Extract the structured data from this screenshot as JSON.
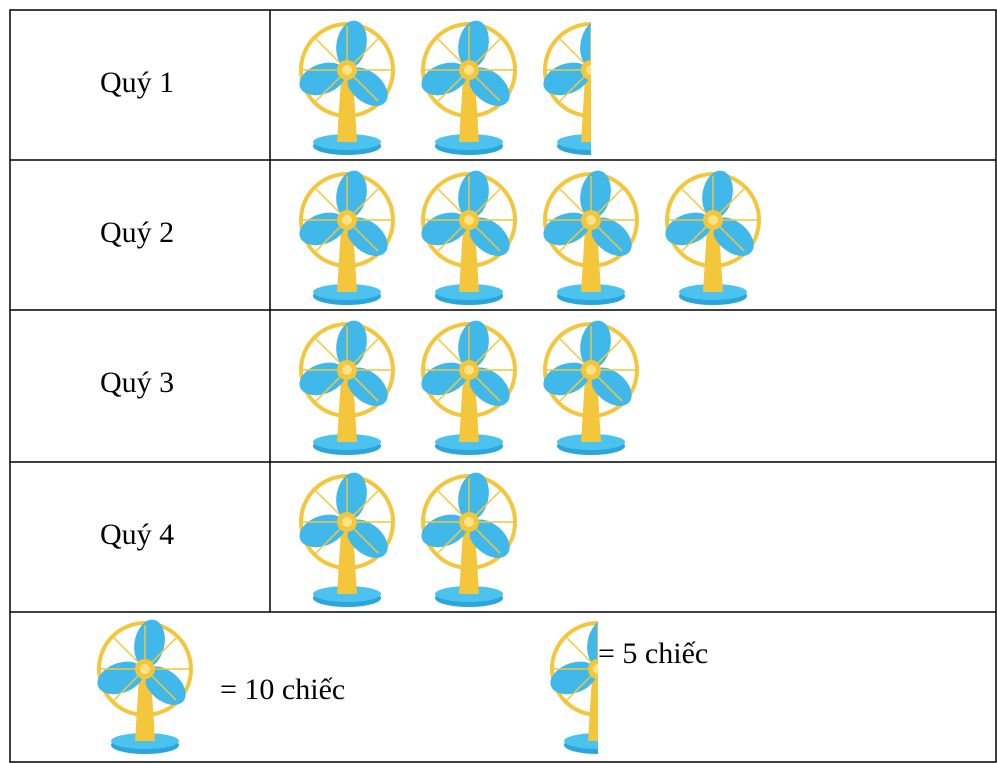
{
  "table": {
    "rows": [
      {
        "label": "Quý 1",
        "icons": 2.5
      },
      {
        "label": "Quý 2",
        "icons": 4
      },
      {
        "label": "Quý 3",
        "icons": 3
      },
      {
        "label": "Quý 4",
        "icons": 2
      }
    ]
  },
  "legend": [
    {
      "icons": 1,
      "text": "= 10 chiếc"
    },
    {
      "icons": 0.5,
      "text": "= 5 chiếc"
    }
  ]
}
